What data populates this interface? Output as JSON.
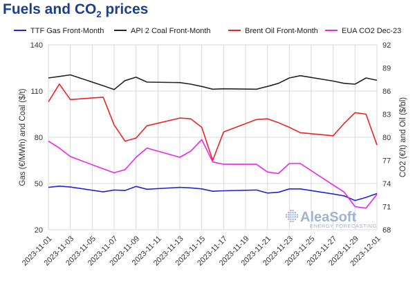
{
  "chart_data": {
    "type": "line",
    "title_prefix": "Fuels and CO",
    "title_sub": "2",
    "title_suffix": " prices",
    "x": [
      "2023-11-01",
      "2023-11-02",
      "2023-11-03",
      "2023-11-06",
      "2023-11-07",
      "2023-11-08",
      "2023-11-09",
      "2023-11-10",
      "2023-11-13",
      "2023-11-14",
      "2023-11-15",
      "2023-11-16",
      "2023-11-17",
      "2023-11-20",
      "2023-11-21",
      "2023-11-22",
      "2023-11-23",
      "2023-11-24",
      "2023-11-27",
      "2023-11-28",
      "2023-11-29",
      "2023-11-30",
      "2023-12-01"
    ],
    "x_tick_labels": [
      "2023-11-01",
      "2023-11-03",
      "2023-11-05",
      "2023-11-07",
      "2023-11-09",
      "2023-11-11",
      "2023-11-13",
      "2023-11-15",
      "2023-11-17",
      "2023-11-19",
      "2023-11-21",
      "2023-11-23",
      "2023-11-25",
      "2023-11-27",
      "2023-11-29",
      "2023-12-01"
    ],
    "ylabel_left": "Gas (€/MWh) and Coal ($/t)",
    "ylabel_right": "CO2 (€/t) and Oil ($/bl)",
    "ylim_left": [
      20,
      140
    ],
    "yticks_left": [
      20,
      50,
      80,
      110,
      140
    ],
    "ylim_right": [
      68,
      92
    ],
    "yticks_right": [
      68,
      71,
      74,
      77,
      80,
      83,
      86,
      89,
      92
    ],
    "grid": true,
    "legend_position": "top",
    "series": [
      {
        "name": "TTF Gas Front-Month",
        "axis": "left",
        "color": "#2222dd",
        "values": [
          47.5,
          48.3,
          47.7,
          44.6,
          45.8,
          45.5,
          48.1,
          46.3,
          47.5,
          47.2,
          46.5,
          45.0,
          45.3,
          45.8,
          43.8,
          44.3,
          46.5,
          46.5,
          43.2,
          42.0,
          39.0,
          41.0,
          43.5
        ]
      },
      {
        "name": "API 2 Coal Front-Month",
        "axis": "left",
        "color": "#222222",
        "values": [
          118.5,
          119.5,
          120.5,
          113.5,
          111.0,
          116.8,
          119.0,
          115.8,
          115.5,
          114.5,
          113.0,
          111.2,
          111.5,
          111.2,
          113.0,
          115.0,
          118.5,
          120.0,
          116.5,
          115.0,
          114.5,
          118.5,
          117.0
        ]
      },
      {
        "name": "Brent Oil Front-Month",
        "axis": "right",
        "color": "#ee2222",
        "values": [
          84.6,
          86.9,
          84.9,
          85.2,
          81.6,
          79.5,
          79.9,
          81.5,
          82.5,
          82.4,
          81.3,
          77.0,
          80.7,
          82.3,
          82.4,
          81.9,
          81.3,
          80.6,
          80.2,
          81.8,
          83.2,
          83.0,
          79.0
        ]
      },
      {
        "name": "EUA CO2 Dec-23",
        "axis": "right",
        "color": "#ee22ee",
        "values": [
          79.5,
          78.6,
          77.5,
          75.9,
          75.4,
          75.8,
          77.4,
          78.6,
          77.4,
          78.2,
          79.7,
          76.8,
          76.5,
          76.5,
          75.5,
          75.3,
          76.6,
          76.6,
          73.8,
          72.9,
          71.0,
          70.8,
          72.6
        ]
      }
    ]
  },
  "watermark": {
    "brand": "AleaSoft",
    "tagline": "ENERGY FORECASTING"
  }
}
